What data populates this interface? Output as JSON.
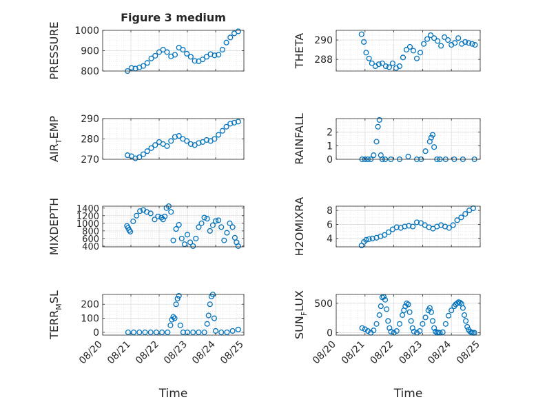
{
  "figure": {
    "title": "Figure 3 medium",
    "time_label": "Time"
  },
  "x_tick_labels": [
    "08/20",
    "08/21",
    "08/22",
    "08/23",
    "08/24",
    "08/25"
  ],
  "colors": {
    "marker": "#0072BD",
    "axis": "#262626",
    "grid": "#dcdcdc",
    "background": "#ffffff"
  },
  "chart_data": [
    {
      "type": "scatter",
      "title": "Figure 3 medium",
      "xlabel": "",
      "ylabel_parts": [
        [
          "PRESSURE",
          ""
        ]
      ],
      "ylim": [
        800,
        1000
      ],
      "yticks": [
        800,
        900,
        1000
      ],
      "ytick_labels": [
        "800",
        "900",
        "1000"
      ],
      "x": [
        0.88,
        1.02,
        1.16,
        1.3,
        1.44,
        1.58,
        1.72,
        1.86,
        2.0,
        2.14,
        2.28,
        2.42,
        2.56,
        2.7,
        2.84,
        2.98,
        3.12,
        3.26,
        3.4,
        3.54,
        3.68,
        3.82,
        3.96,
        4.1,
        4.24,
        4.38,
        4.52,
        4.66,
        4.8
      ],
      "y": [
        800,
        815,
        812,
        818,
        825,
        840,
        862,
        875,
        893,
        905,
        893,
        872,
        880,
        915,
        905,
        885,
        870,
        850,
        848,
        857,
        870,
        883,
        877,
        880,
        905,
        940,
        965,
        985,
        995
      ]
    },
    {
      "type": "scatter",
      "xlabel": "",
      "ylabel_parts": [
        [
          "THETA",
          ""
        ]
      ],
      "ylim": [
        286.8,
        291.0
      ],
      "yticks": [
        288,
        290
      ],
      "ytick_labels": [
        "288",
        "290"
      ],
      "x": [
        0.88,
        0.96,
        1.04,
        1.14,
        1.24,
        1.36,
        1.48,
        1.6,
        1.72,
        1.84,
        1.96,
        2.08,
        2.2,
        2.32,
        2.44,
        2.56,
        2.68,
        2.8,
        2.92,
        3.04,
        3.16,
        3.28,
        3.4,
        3.52,
        3.64,
        3.76,
        3.88,
        4.0,
        4.12,
        4.24,
        4.36,
        4.48,
        4.6,
        4.72,
        4.82
      ],
      "y": [
        290.6,
        289.8,
        288.7,
        288.1,
        287.6,
        287.3,
        287.5,
        287.6,
        287.3,
        287.2,
        287.6,
        287.1,
        287.3,
        288.2,
        289.0,
        289.3,
        288.9,
        288.1,
        288.7,
        289.6,
        290.1,
        290.5,
        290.2,
        289.9,
        289.4,
        290.3,
        290.0,
        289.5,
        289.7,
        290.2,
        289.6,
        289.8,
        289.7,
        289.6,
        289.5
      ]
    },
    {
      "type": "scatter",
      "xlabel": "",
      "ylabel_parts": [
        [
          "AIR",
          ""
        ],
        [
          "T",
          "sub"
        ],
        [
          "EMP",
          ""
        ]
      ],
      "ylim": [
        270,
        290
      ],
      "yticks": [
        270,
        280,
        290
      ],
      "ytick_labels": [
        "270",
        "280",
        "290"
      ],
      "x": [
        0.88,
        1.02,
        1.16,
        1.3,
        1.44,
        1.58,
        1.72,
        1.86,
        2.0,
        2.14,
        2.28,
        2.42,
        2.56,
        2.7,
        2.84,
        2.98,
        3.12,
        3.26,
        3.4,
        3.54,
        3.68,
        3.82,
        3.96,
        4.1,
        4.24,
        4.38,
        4.52,
        4.66,
        4.8
      ],
      "y": [
        272,
        271.5,
        270.5,
        271,
        272.5,
        274,
        275.5,
        277,
        278.5,
        277.5,
        276.5,
        279,
        281,
        281.5,
        280,
        279,
        277.5,
        277,
        278,
        278.5,
        279.5,
        279,
        280,
        282,
        284,
        286,
        287.5,
        288,
        288.5
      ]
    },
    {
      "type": "scatter",
      "xlabel": "",
      "ylabel_parts": [
        [
          "RAINFALL",
          ""
        ]
      ],
      "ylim": [
        0,
        3
      ],
      "yticks": [
        0,
        1,
        2
      ],
      "ytick_labels": [
        "0",
        "1",
        "2"
      ],
      "x": [
        0.9,
        1.0,
        1.1,
        1.2,
        1.3,
        1.4,
        1.45,
        1.5,
        1.55,
        1.6,
        1.7,
        1.9,
        2.2,
        2.5,
        2.8,
        2.95,
        3.1,
        3.25,
        3.3,
        3.35,
        3.4,
        3.5,
        3.6,
        3.8,
        4.1,
        4.4,
        4.8
      ],
      "y": [
        0,
        0,
        0,
        0,
        0.3,
        1.3,
        2.4,
        2.9,
        0.3,
        0,
        0,
        0,
        0,
        0.2,
        0,
        0,
        0.6,
        1.3,
        1.6,
        1.8,
        0.9,
        0,
        0,
        0,
        0,
        0,
        0
      ]
    },
    {
      "type": "scatter",
      "xlabel": "",
      "ylabel_parts": [
        [
          "MIXDEPTH",
          ""
        ]
      ],
      "ylim": [
        380,
        1450
      ],
      "yticks": [
        400,
        600,
        800,
        1000,
        1200,
        1400
      ],
      "ytick_labels": [
        "400",
        "600",
        "800",
        "1000",
        "1200",
        "1400"
      ],
      "x": [
        0.86,
        0.9,
        0.94,
        0.98,
        1.08,
        1.2,
        1.32,
        1.44,
        1.56,
        1.7,
        1.84,
        1.96,
        2.08,
        2.14,
        2.2,
        2.26,
        2.34,
        2.42,
        2.5,
        2.6,
        2.7,
        2.8,
        2.9,
        3.0,
        3.1,
        3.2,
        3.3,
        3.4,
        3.5,
        3.6,
        3.7,
        3.8,
        3.9,
        4.0,
        4.1,
        4.2,
        4.3,
        4.4,
        4.5,
        4.6,
        4.68,
        4.74,
        4.8
      ],
      "y": [
        930,
        880,
        820,
        780,
        1050,
        1200,
        1320,
        1350,
        1300,
        1260,
        1100,
        1180,
        1150,
        1100,
        1180,
        1400,
        1450,
        1300,
        550,
        850,
        960,
        600,
        450,
        700,
        500,
        400,
        600,
        900,
        1000,
        1150,
        1120,
        800,
        950,
        1060,
        1080,
        900,
        550,
        750,
        1000,
        900,
        620,
        500,
        400
      ]
    },
    {
      "type": "scatter",
      "xlabel": "",
      "ylabel_parts": [
        [
          "H2OMIXRA",
          ""
        ]
      ],
      "ylim": [
        2.8,
        8.6
      ],
      "yticks": [
        4,
        6,
        8
      ],
      "ytick_labels": [
        "4",
        "6",
        "8"
      ],
      "x": [
        0.88,
        0.96,
        1.04,
        1.14,
        1.26,
        1.4,
        1.54,
        1.68,
        1.82,
        1.96,
        2.1,
        2.24,
        2.38,
        2.52,
        2.66,
        2.8,
        2.94,
        3.08,
        3.22,
        3.36,
        3.5,
        3.64,
        3.78,
        3.92,
        4.06,
        4.2,
        4.34,
        4.48,
        4.62,
        4.76
      ],
      "y": [
        3.0,
        3.5,
        3.8,
        3.9,
        4.0,
        4.1,
        4.3,
        4.5,
        4.9,
        5.3,
        5.6,
        5.5,
        5.7,
        5.8,
        5.7,
        6.3,
        6.2,
        5.9,
        5.6,
        5.4,
        5.7,
        5.9,
        5.7,
        5.5,
        5.9,
        6.6,
        7.0,
        7.5,
        8.0,
        8.3
      ]
    },
    {
      "type": "scatter",
      "xlabel": "Time",
      "ylabel_parts": [
        [
          "TERR",
          ""
        ],
        [
          "M",
          "sub"
        ],
        [
          "SL",
          ""
        ]
      ],
      "ylim": [
        -20,
        270
      ],
      "yticks": [
        0,
        100,
        200
      ],
      "ytick_labels": [
        "0",
        "100",
        "200"
      ],
      "x": [
        0.9,
        1.1,
        1.3,
        1.5,
        1.7,
        1.9,
        2.1,
        2.3,
        2.4,
        2.45,
        2.5,
        2.55,
        2.6,
        2.65,
        2.7,
        2.75,
        2.85,
        3.0,
        3.2,
        3.4,
        3.6,
        3.7,
        3.75,
        3.8,
        3.85,
        3.9,
        3.95,
        4.0,
        4.2,
        4.4,
        4.6,
        4.8
      ],
      "y": [
        0,
        0,
        0,
        0,
        0,
        0,
        0,
        0,
        50,
        90,
        110,
        100,
        200,
        240,
        260,
        50,
        0,
        0,
        0,
        0,
        0,
        60,
        120,
        200,
        255,
        270,
        100,
        10,
        0,
        0,
        10,
        20
      ]
    },
    {
      "type": "scatter",
      "xlabel": "Time",
      "ylabel_parts": [
        [
          "SUN",
          ""
        ],
        [
          "F",
          "sub"
        ],
        [
          "LUX",
          ""
        ]
      ],
      "ylim": [
        -40,
        650
      ],
      "yticks": [
        0,
        500
      ],
      "ytick_labels": [
        "0",
        "500"
      ],
      "x": [
        0.9,
        1.0,
        1.1,
        1.2,
        1.3,
        1.4,
        1.5,
        1.55,
        1.6,
        1.65,
        1.7,
        1.75,
        1.8,
        1.85,
        1.9,
        2.0,
        2.1,
        2.2,
        2.3,
        2.35,
        2.4,
        2.45,
        2.5,
        2.55,
        2.6,
        2.65,
        2.7,
        2.8,
        2.9,
        3.0,
        3.1,
        3.2,
        3.25,
        3.3,
        3.35,
        3.4,
        3.45,
        3.5,
        3.55,
        3.6,
        3.7,
        3.8,
        3.9,
        4.0,
        4.1,
        4.15,
        4.2,
        4.25,
        4.3,
        4.35,
        4.4,
        4.45,
        4.5,
        4.55,
        4.6,
        4.65,
        4.7,
        4.75,
        4.8
      ],
      "y": [
        80,
        60,
        30,
        0,
        40,
        150,
        300,
        450,
        600,
        610,
        560,
        400,
        200,
        80,
        20,
        0,
        30,
        150,
        300,
        380,
        450,
        500,
        480,
        350,
        200,
        80,
        20,
        0,
        30,
        150,
        260,
        380,
        420,
        350,
        200,
        80,
        20,
        0,
        5,
        0,
        10,
        150,
        290,
        380,
        450,
        480,
        500,
        520,
        510,
        490,
        420,
        300,
        200,
        100,
        50,
        20,
        5,
        0,
        0
      ]
    }
  ]
}
